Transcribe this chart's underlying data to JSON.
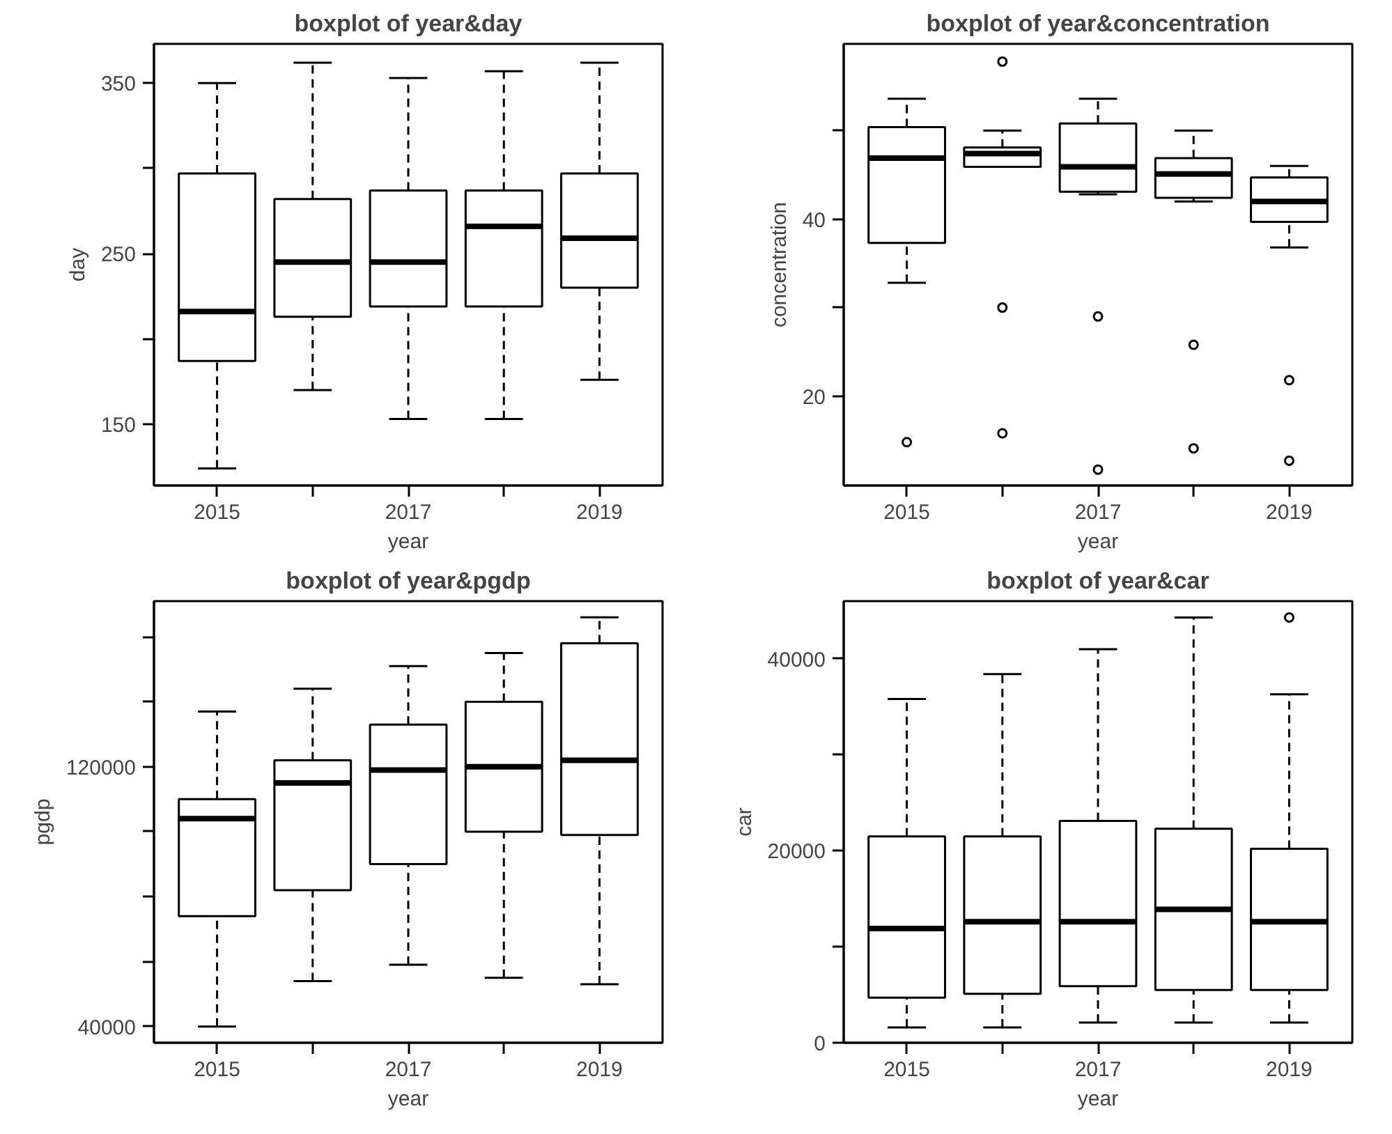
{
  "chart_data": [
    {
      "type": "box",
      "title": "boxplot of year&day",
      "xlabel": "year",
      "ylabel": "day",
      "categories": [
        "2015",
        null,
        "2017",
        null,
        "2019"
      ],
      "ylim": [
        114,
        373
      ],
      "yticks": [
        150,
        {
          "value": 200,
          "label": null
        },
        250,
        {
          "value": 300,
          "label": null
        },
        350
      ],
      "boxes": [
        {
          "low": 124,
          "q1": 187,
          "median": 216,
          "q3": 297,
          "high": 350
        },
        {
          "low": 170,
          "q1": 213,
          "median": 245,
          "q3": 282,
          "high": 362
        },
        {
          "low": 153,
          "q1": 219,
          "median": 245,
          "q3": 287,
          "high": 353
        },
        {
          "low": 153,
          "q1": 219,
          "median": 266,
          "q3": 287,
          "high": 357
        },
        {
          "low": 176,
          "q1": 230,
          "median": 259,
          "q3": 297,
          "high": 362
        }
      ]
    },
    {
      "type": "box",
      "title": "boxplot of year&concentration",
      "xlabel": "year",
      "ylabel": "concentration",
      "categories": [
        "2015",
        null,
        "2017",
        null,
        "2019"
      ],
      "ylim": [
        9.9,
        59.8
      ],
      "yticks": [
        20,
        {
          "value": 30,
          "label": null
        },
        40,
        {
          "value": 50,
          "label": null
        }
      ],
      "boxes": [
        {
          "low": 32.8,
          "q1": 37.3,
          "median": 46.9,
          "q3": 50.4,
          "high": 53.6,
          "outliers": [
            14.8
          ]
        },
        {
          "low": 45.9,
          "q1": 45.9,
          "median": 47.4,
          "q3": 48.1,
          "high": 50,
          "outliers": [
            57.8,
            30,
            15.8
          ]
        },
        {
          "low": 42.8,
          "q1": 43.1,
          "median": 45.9,
          "q3": 50.8,
          "high": 53.6,
          "outliers": [
            29,
            11.7
          ]
        },
        {
          "low": 42,
          "q1": 42.4,
          "median": 45.1,
          "q3": 46.9,
          "high": 50,
          "outliers": [
            25.8,
            14.1
          ]
        },
        {
          "low": 36.8,
          "q1": 39.7,
          "median": 42,
          "q3": 44.7,
          "high": 46,
          "outliers": [
            21.8,
            12.7
          ]
        }
      ]
    },
    {
      "type": "box",
      "title": "boxplot of year&pgdp",
      "xlabel": "year",
      "ylabel": "pgdp",
      "categories": [
        "2015",
        null,
        "2017",
        null,
        "2019"
      ],
      "ylim": [
        35000,
        171000
      ],
      "yticks": [
        40000,
        {
          "value": 60000,
          "label": null
        },
        {
          "value": 80000,
          "label": null
        },
        {
          "value": 100000,
          "label": null
        },
        120000,
        {
          "value": 140000,
          "label": null
        },
        {
          "value": 160000,
          "label": null
        }
      ],
      "boxes": [
        {
          "low": 40000,
          "q1": 74000,
          "median": 104000,
          "q3": 110000,
          "high": 137000
        },
        {
          "low": 54000,
          "q1": 82000,
          "median": 115000,
          "q3": 122000,
          "high": 144000
        },
        {
          "low": 59000,
          "q1": 90000,
          "median": 119000,
          "q3": 133000,
          "high": 151000
        },
        {
          "low": 55000,
          "q1": 100000,
          "median": 120000,
          "q3": 140000,
          "high": 155000
        },
        {
          "low": 53000,
          "q1": 99000,
          "median": 122000,
          "q3": 158000,
          "high": 166000
        }
      ]
    },
    {
      "type": "box",
      "title": "boxplot of year&car",
      "xlabel": "year",
      "ylabel": "car",
      "categories": [
        "2015",
        null,
        "2017",
        null,
        "2019"
      ],
      "ylim": [
        0,
        46000
      ],
      "yticks": [
        0,
        {
          "value": 10000,
          "label": null
        },
        20000,
        {
          "value": 30000,
          "label": null
        },
        40000
      ],
      "boxes": [
        {
          "low": 1600,
          "q1": 4700,
          "median": 11900,
          "q3": 21500,
          "high": 35800
        },
        {
          "low": 1600,
          "q1": 5100,
          "median": 12600,
          "q3": 21500,
          "high": 38400
        },
        {
          "low": 2100,
          "q1": 5900,
          "median": 12600,
          "q3": 23100,
          "high": 41000
        },
        {
          "low": 2100,
          "q1": 5500,
          "median": 13900,
          "q3": 22300,
          "high": 44300
        },
        {
          "low": 2100,
          "q1": 5500,
          "median": 12600,
          "q3": 20200,
          "high": 36300,
          "outliers": [
            44300
          ]
        }
      ]
    }
  ]
}
